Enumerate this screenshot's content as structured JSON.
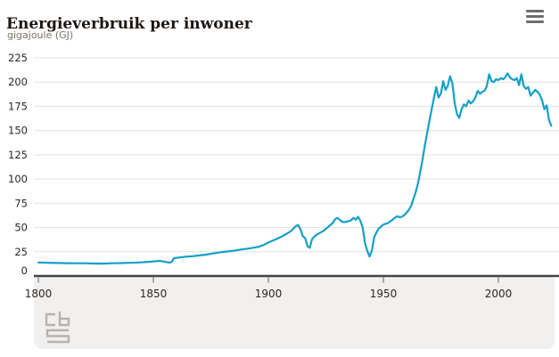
{
  "header": {
    "title": "Energieverbruik per inwoner",
    "subtitle": "gigajoule (GJ)",
    "menu_icon": "hamburger-menu-icon"
  },
  "colors": {
    "line": "#14a0c8",
    "grid": "#e3e1de",
    "axis": "#454442",
    "tick": "#8a8a88",
    "tick_label": "#2b2724",
    "band": "#f1f0ee",
    "logo": "#b5b3b0"
  },
  "footer": {
    "logo": "cbs-logo"
  },
  "chart_data": {
    "type": "line",
    "title": "Energieverbruik per inwoner",
    "ylabel": "gigajoule (GJ)",
    "xlabel": "",
    "legend_position": "none",
    "grid": "horizontal-only",
    "xlim": [
      1800,
      2023
    ],
    "ylim": [
      0,
      235
    ],
    "x_ticks": [
      1800,
      1850,
      1900,
      1950,
      2000
    ],
    "y_ticks": [
      0,
      25,
      50,
      75,
      100,
      125,
      150,
      175,
      200,
      225
    ],
    "series": [
      {
        "name": "Energieverbruik per inwoner (GJ)",
        "points": [
          [
            1800,
            14
          ],
          [
            1804,
            13.7
          ],
          [
            1808,
            13.4
          ],
          [
            1812,
            13.2
          ],
          [
            1816,
            13.1
          ],
          [
            1820,
            13.1
          ],
          [
            1824,
            12.9
          ],
          [
            1828,
            12.8
          ],
          [
            1832,
            13.1
          ],
          [
            1836,
            13.3
          ],
          [
            1840,
            13.6
          ],
          [
            1844,
            14.0
          ],
          [
            1848,
            14.6
          ],
          [
            1851,
            15.2
          ],
          [
            1853,
            15.5
          ],
          [
            1855,
            14.6
          ],
          [
            1857,
            13.8
          ],
          [
            1858,
            14.6
          ],
          [
            1859,
            18.4
          ],
          [
            1861,
            19.0
          ],
          [
            1864,
            19.8
          ],
          [
            1867,
            20.4
          ],
          [
            1870,
            21.2
          ],
          [
            1873,
            22.0
          ],
          [
            1876,
            23.2
          ],
          [
            1879,
            24.4
          ],
          [
            1882,
            25.3
          ],
          [
            1885,
            26.1
          ],
          [
            1888,
            27.3
          ],
          [
            1891,
            28.2
          ],
          [
            1894,
            29.3
          ],
          [
            1896,
            30.3
          ],
          [
            1898,
            32.0
          ],
          [
            1900,
            34.5
          ],
          [
            1902,
            36.6
          ],
          [
            1904,
            38.6
          ],
          [
            1906,
            41.0
          ],
          [
            1908,
            43.6
          ],
          [
            1910,
            46.6
          ],
          [
            1912,
            51.6
          ],
          [
            1913,
            52.6
          ],
          [
            1914,
            48.0
          ],
          [
            1915,
            41.0
          ],
          [
            1916,
            39.0
          ],
          [
            1917,
            30.6
          ],
          [
            1918,
            29.0
          ],
          [
            1919,
            38.0
          ],
          [
            1920,
            40.6
          ],
          [
            1921,
            42.6
          ],
          [
            1922,
            44.0
          ],
          [
            1924,
            46.6
          ],
          [
            1926,
            50.6
          ],
          [
            1928,
            54.6
          ],
          [
            1929,
            58.6
          ],
          [
            1930,
            60.0
          ],
          [
            1931,
            58.0
          ],
          [
            1932,
            56.0
          ],
          [
            1933,
            55.6
          ],
          [
            1934,
            56.0
          ],
          [
            1935,
            56.6
          ],
          [
            1936,
            57.6
          ],
          [
            1937,
            60.0
          ],
          [
            1938,
            58.0
          ],
          [
            1939,
            61.0
          ],
          [
            1940,
            57.0
          ],
          [
            1941,
            50.0
          ],
          [
            1942,
            34.0
          ],
          [
            1943,
            26.0
          ],
          [
            1944,
            20.0
          ],
          [
            1945,
            26.0
          ],
          [
            1946,
            40.0
          ],
          [
            1947,
            45.0
          ],
          [
            1948,
            49.0
          ],
          [
            1949,
            51.0
          ],
          [
            1950,
            53.0
          ],
          [
            1952,
            54.6
          ],
          [
            1954,
            58.0
          ],
          [
            1955,
            60.0
          ],
          [
            1956,
            61.6
          ],
          [
            1957,
            60.6
          ],
          [
            1958,
            61.0
          ],
          [
            1959,
            62.6
          ],
          [
            1960,
            65.0
          ],
          [
            1961,
            68.0
          ],
          [
            1962,
            72.0
          ],
          [
            1963,
            79.0
          ],
          [
            1964,
            86.0
          ],
          [
            1965,
            95.0
          ],
          [
            1966,
            107
          ],
          [
            1967,
            120
          ],
          [
            1968,
            134
          ],
          [
            1969,
            147
          ],
          [
            1970,
            160
          ],
          [
            1971,
            172
          ],
          [
            1972,
            184
          ],
          [
            1973,
            195
          ],
          [
            1974,
            184
          ],
          [
            1975,
            188
          ],
          [
            1976,
            201
          ],
          [
            1977,
            192
          ],
          [
            1978,
            196
          ],
          [
            1979,
            206
          ],
          [
            1980,
            199
          ],
          [
            1981,
            178
          ],
          [
            1982,
            167
          ],
          [
            1983,
            163
          ],
          [
            1984,
            172
          ],
          [
            1985,
            177
          ],
          [
            1986,
            175
          ],
          [
            1987,
            181
          ],
          [
            1988,
            178
          ],
          [
            1989,
            180
          ],
          [
            1990,
            184
          ],
          [
            1991,
            191
          ],
          [
            1992,
            188
          ],
          [
            1993,
            190
          ],
          [
            1994,
            191
          ],
          [
            1995,
            196
          ],
          [
            1996,
            208
          ],
          [
            1997,
            201
          ],
          [
            1998,
            200
          ],
          [
            1999,
            203
          ],
          [
            2000,
            202
          ],
          [
            2001,
            204
          ],
          [
            2002,
            203
          ],
          [
            2003,
            205
          ],
          [
            2004,
            209
          ],
          [
            2005,
            205
          ],
          [
            2006,
            203
          ],
          [
            2007,
            202
          ],
          [
            2008,
            204
          ],
          [
            2009,
            197
          ],
          [
            2010,
            208
          ],
          [
            2011,
            196
          ],
          [
            2012,
            193
          ],
          [
            2013,
            195
          ],
          [
            2014,
            186
          ],
          [
            2015,
            189
          ],
          [
            2016,
            192
          ],
          [
            2017,
            190
          ],
          [
            2018,
            187
          ],
          [
            2019,
            181
          ],
          [
            2020,
            172
          ],
          [
            2021,
            176
          ],
          [
            2022,
            161
          ],
          [
            2023,
            155
          ]
        ]
      }
    ]
  }
}
